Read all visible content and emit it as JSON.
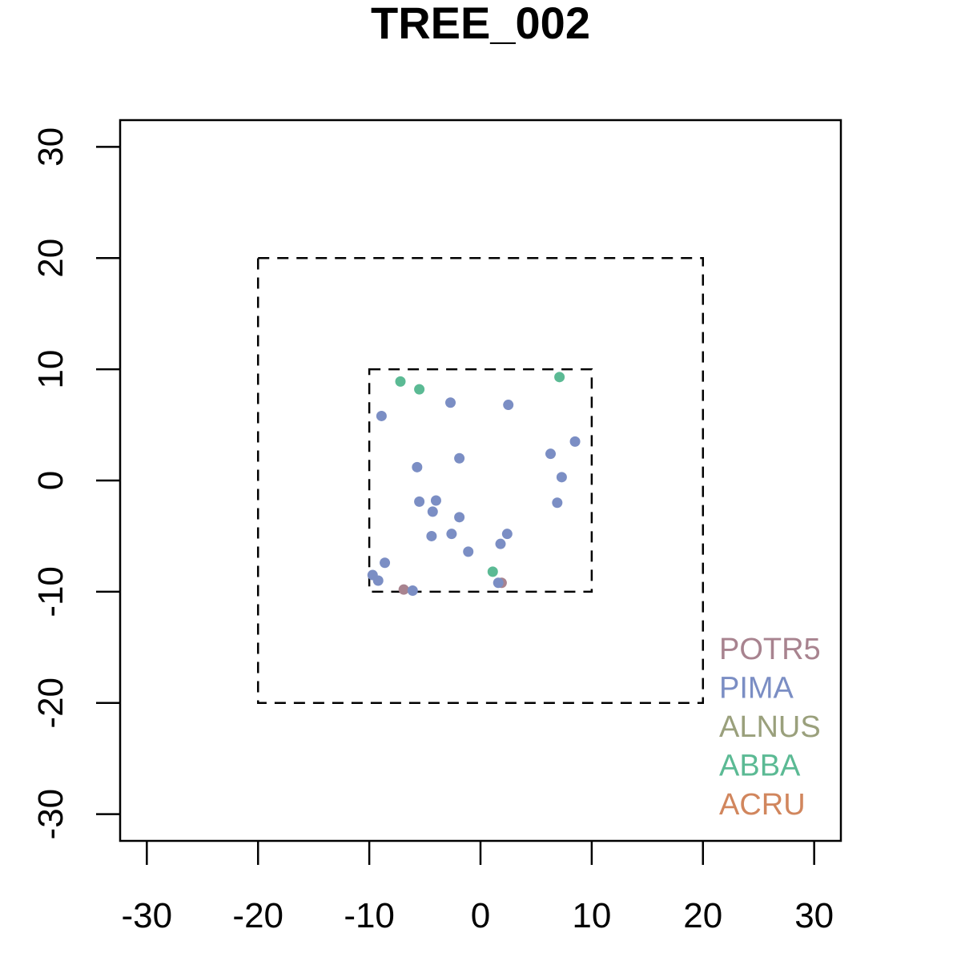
{
  "chart_data": {
    "type": "scatter",
    "title": "TREE_002",
    "xlabel": "",
    "ylabel": "",
    "xlim": [
      -32.4,
      32.4
    ],
    "ylim": [
      -32.4,
      32.4
    ],
    "x_ticks": [
      -30,
      -20,
      -10,
      0,
      10,
      20,
      30
    ],
    "y_ticks": [
      -30,
      -20,
      -10,
      0,
      10,
      20,
      30
    ],
    "x_tick_labels": [
      "-30",
      "-20",
      "-10",
      "0",
      "10",
      "20",
      "30"
    ],
    "y_tick_labels": [
      "-30",
      "-20",
      "-10",
      "0",
      "10",
      "20",
      "30"
    ],
    "grid": false,
    "legend_position": "bottom-right",
    "boxes": [
      {
        "xmin": -20,
        "xmax": 20,
        "ymin": -20,
        "ymax": 20,
        "style": "dashed"
      },
      {
        "xmin": -10,
        "xmax": 10,
        "ymin": -10,
        "ymax": 10,
        "style": "dashed"
      }
    ],
    "series": [
      {
        "name": "POTR5",
        "color": "#a8838f",
        "points": [
          [
            -6.9,
            -9.8
          ],
          [
            1.9,
            -9.2
          ]
        ]
      },
      {
        "name": "PIMA",
        "color": "#7b8ec4",
        "points": [
          [
            -8.9,
            5.8
          ],
          [
            -2.7,
            7.0
          ],
          [
            2.5,
            6.8
          ],
          [
            -1.9,
            2.0
          ],
          [
            -5.7,
            1.2
          ],
          [
            6.3,
            2.4
          ],
          [
            8.5,
            3.5
          ],
          [
            7.3,
            0.3
          ],
          [
            -5.5,
            -1.9
          ],
          [
            -4.0,
            -1.8
          ],
          [
            -4.3,
            -2.8
          ],
          [
            -1.9,
            -3.3
          ],
          [
            6.9,
            -2.0
          ],
          [
            -4.4,
            -5.0
          ],
          [
            -2.6,
            -4.8
          ],
          [
            2.4,
            -4.8
          ],
          [
            1.8,
            -5.7
          ],
          [
            -1.1,
            -6.4
          ],
          [
            -8.6,
            -7.4
          ],
          [
            -9.7,
            -8.5
          ],
          [
            -9.2,
            -9.0
          ],
          [
            1.6,
            -9.2
          ],
          [
            -6.1,
            -9.9
          ]
        ]
      },
      {
        "name": "ALNUS",
        "color": "#9aa07c",
        "points": []
      },
      {
        "name": "ABBA",
        "color": "#5bba94",
        "points": [
          [
            -7.2,
            8.9
          ],
          [
            -5.5,
            8.2
          ],
          [
            7.1,
            9.3
          ],
          [
            1.1,
            -8.2
          ]
        ]
      },
      {
        "name": "ACRU",
        "color": "#d1865d",
        "points": []
      }
    ]
  }
}
